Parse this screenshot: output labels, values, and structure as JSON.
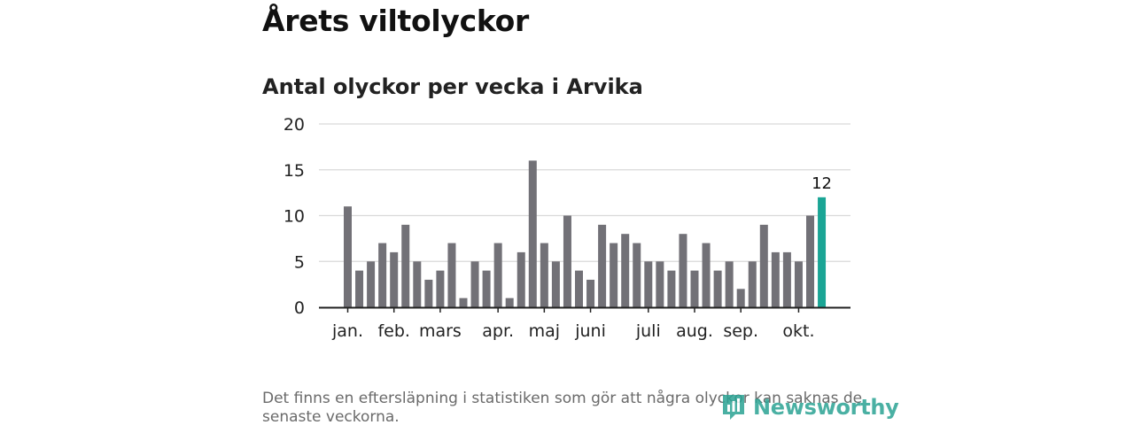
{
  "header": {
    "title": "Årets viltolyckor"
  },
  "chart_data": {
    "type": "bar",
    "title": "Antal olyckor per vecka i Arvika",
    "xlabel": "",
    "ylabel": "",
    "ylim": [
      0,
      20
    ],
    "yticks": [
      "0",
      "5",
      "10",
      "15",
      "20"
    ],
    "grid": true,
    "values": [
      11,
      4,
      5,
      7,
      6,
      9,
      5,
      3,
      4,
      7,
      1,
      5,
      4,
      7,
      1,
      6,
      16,
      7,
      5,
      10,
      4,
      3,
      9,
      7,
      8,
      7,
      5,
      5,
      4,
      8,
      4,
      7,
      4,
      5,
      2,
      5,
      9,
      6,
      6,
      5,
      10,
      12
    ],
    "highlight_index": 41,
    "highlight_label": "12",
    "month_labels": [
      {
        "label": "jan.",
        "bar_index": 0
      },
      {
        "label": "feb.",
        "bar_index": 4
      },
      {
        "label": "mars",
        "bar_index": 8
      },
      {
        "label": "apr.",
        "bar_index": 13
      },
      {
        "label": "maj",
        "bar_index": 17
      },
      {
        "label": "juni",
        "bar_index": 21
      },
      {
        "label": "juli",
        "bar_index": 26
      },
      {
        "label": "aug.",
        "bar_index": 30
      },
      {
        "label": "sep.",
        "bar_index": 34
      },
      {
        "label": "okt.",
        "bar_index": 39
      }
    ],
    "colors": {
      "bar": "#727177",
      "highlight": "#1aa595",
      "grid": "#d9d9d9",
      "axis": "#222222"
    }
  },
  "footer": {
    "note": "Det finns en eftersläpning i statistiken som gör att några olyckor kan saknas de senaste veckorna.",
    "brand": "Newsworthy",
    "brand_icon": "newsworthy-logo-icon"
  }
}
